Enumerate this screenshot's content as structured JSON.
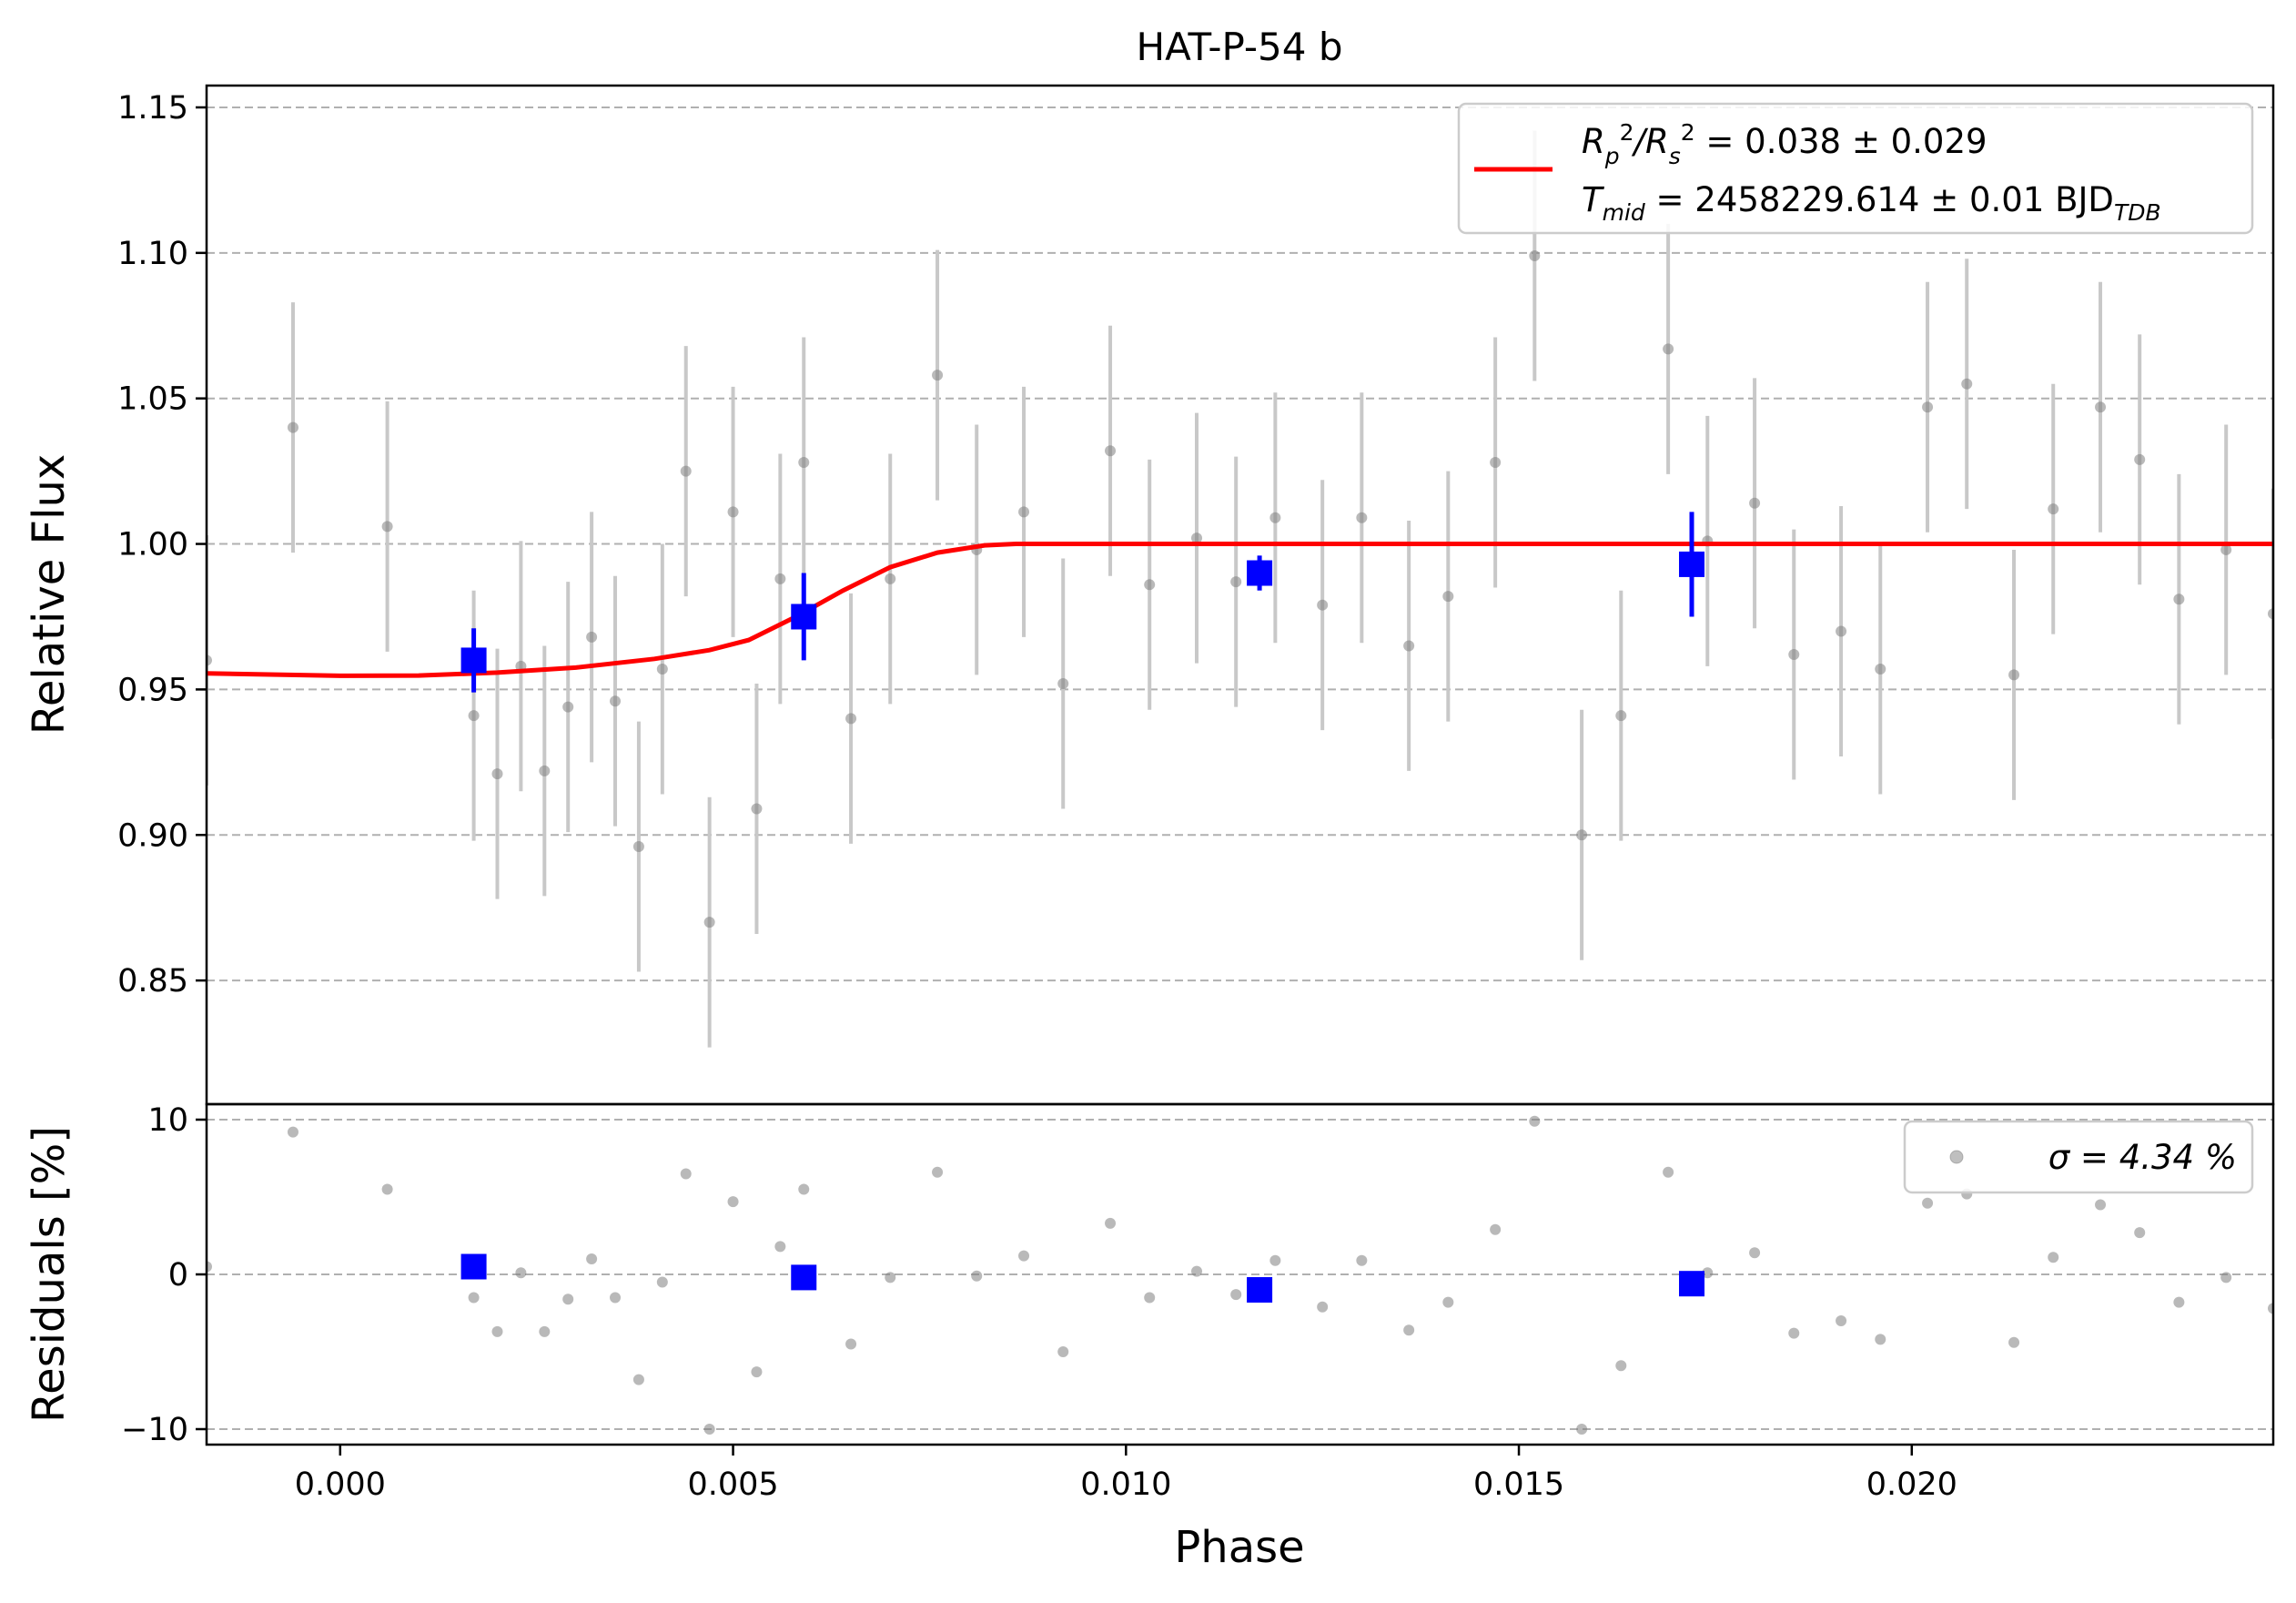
{
  "chart_data": {
    "type": "scatter",
    "title": "HAT-P-54 b",
    "xlabel": "Phase",
    "xlim": [
      -0.0017,
      0.0246
    ],
    "x_ticks": [
      "0.000",
      "0.005",
      "0.010",
      "0.015",
      "0.020"
    ],
    "x_tick_values": [
      0.0,
      0.005,
      0.01,
      0.015,
      0.02
    ],
    "colors": {
      "data": "#808080",
      "errorbar": "#c8c8c8",
      "binned": "#0000ff",
      "model": "#ff0000",
      "grid": "#b0b0b0"
    },
    "top_panel": {
      "ylabel": "Relative Flux",
      "ylim": [
        0.8075,
        1.1575
      ],
      "y_ticks": [
        "0.85",
        "0.90",
        "0.95",
        "1.00",
        "1.05",
        "1.10",
        "1.15"
      ],
      "y_tick_values": [
        0.85,
        0.9,
        0.95,
        1.0,
        1.05,
        1.1,
        1.15
      ],
      "grid": "horizontal dashed",
      "legend_placement": "top-right",
      "legend_line1_parts": [
        "R",
        "p",
        "2",
        "/R",
        "s",
        "2",
        " = 0.038 ± 0.029"
      ],
      "legend_line2_parts": [
        "T",
        "mid",
        " = 2458229.614 ± 0.01 BJD",
        "TDB"
      ],
      "series": [
        {
          "name": "Data",
          "type": "scatter",
          "x": [
            -0.0017,
            -0.0006,
            0.0006,
            0.0017,
            0.002,
            0.0023,
            0.0026,
            0.0029,
            0.0032,
            0.0035,
            0.0038,
            0.0041,
            0.0044,
            0.0047,
            0.005,
            0.0053,
            0.0056,
            0.0059,
            0.0065,
            0.007,
            0.0076,
            0.0081,
            0.0087,
            0.0092,
            0.0098,
            0.0103,
            0.0109,
            0.0114,
            0.0119,
            0.0125,
            0.013,
            0.0136,
            0.0141,
            0.0147,
            0.0152,
            0.0158,
            0.0163,
            0.0169,
            0.0174,
            0.018,
            0.0185,
            0.0191,
            0.0196,
            0.0202,
            0.0207,
            0.0213,
            0.0218,
            0.0224,
            0.0229,
            0.0234,
            0.024,
            0.0246
          ],
          "y": [
            0.96,
            1.04,
            1.006,
            0.941,
            0.921,
            0.958,
            0.922,
            0.944,
            0.968,
            0.946,
            0.896,
            0.957,
            1.025,
            0.87,
            1.011,
            0.909,
            0.988,
            1.028,
            0.94,
            0.988,
            1.058,
            0.998,
            1.011,
            0.952,
            1.032,
            0.986,
            1.002,
            0.987,
            1.009,
            0.979,
            1.009,
            0.965,
            0.982,
            1.028,
            1.099,
            0.9,
            0.941,
            1.067,
            1.001,
            1.014,
            0.962,
            0.97,
            0.957,
            1.047,
            1.055,
            0.955,
            1.012,
            1.047,
            1.029,
            0.981,
            0.998,
            0.976
          ],
          "yerr": [
            0.043,
            0.043,
            0.043,
            0.043,
            0.043,
            0.043,
            0.043,
            0.043,
            0.043,
            0.043,
            0.043,
            0.043,
            0.043,
            0.043,
            0.043,
            0.043,
            0.043,
            0.043,
            0.043,
            0.043,
            0.043,
            0.043,
            0.043,
            0.043,
            0.043,
            0.043,
            0.043,
            0.043,
            0.043,
            0.043,
            0.043,
            0.043,
            0.043,
            0.043,
            0.043,
            0.043,
            0.043,
            0.043,
            0.043,
            0.043,
            0.043,
            0.043,
            0.043,
            0.043,
            0.043,
            0.043,
            0.043,
            0.043,
            0.043,
            0.043,
            0.043,
            0.043
          ]
        },
        {
          "name": "Binned",
          "type": "scatter",
          "x": [
            0.0017,
            0.0059,
            0.0117,
            0.0172
          ],
          "y": [
            0.96,
            0.975,
            0.99,
            0.993
          ],
          "yerr": [
            0.011,
            0.015,
            0.006,
            0.018
          ]
        },
        {
          "name": "Model",
          "type": "line",
          "x": [
            -0.0017,
            0.0,
            0.001,
            0.002,
            0.003,
            0.004,
            0.0047,
            0.0052,
            0.0058,
            0.0064,
            0.007,
            0.0076,
            0.0082,
            0.0086,
            0.01,
            0.015,
            0.02,
            0.0246
          ],
          "y": [
            0.9555,
            0.9547,
            0.9548,
            0.9558,
            0.9575,
            0.9605,
            0.9635,
            0.967,
            0.975,
            0.984,
            0.992,
            0.997,
            0.9995,
            1.0,
            1.0,
            1.0,
            1.0,
            1.0
          ]
        }
      ]
    },
    "bottom_panel": {
      "ylabel": "Residuals [%]",
      "ylim": [
        -11,
        11
      ],
      "y_ticks": [
        "−10",
        "0",
        "10"
      ],
      "y_tick_values": [
        -10,
        0,
        10
      ],
      "grid": "horizontal dashed",
      "legend_placement": "top-right",
      "legend_text": "σ = 4.34 %",
      "series": [
        {
          "name": "Residuals",
          "type": "scatter",
          "x": [
            -0.0017,
            -0.0006,
            0.0006,
            0.0017,
            0.002,
            0.0023,
            0.0026,
            0.0029,
            0.0032,
            0.0035,
            0.0038,
            0.0041,
            0.0044,
            0.0047,
            0.005,
            0.0053,
            0.0056,
            0.0059,
            0.0065,
            0.007,
            0.0076,
            0.0081,
            0.0087,
            0.0092,
            0.0098,
            0.0103,
            0.0109,
            0.0114,
            0.0119,
            0.0125,
            0.013,
            0.0136,
            0.0141,
            0.0147,
            0.0152,
            0.0158,
            0.0163,
            0.0169,
            0.0174,
            0.018,
            0.0185,
            0.0191,
            0.0196,
            0.0202,
            0.0207,
            0.0213,
            0.0218,
            0.0224,
            0.0229,
            0.0234,
            0.024,
            0.0246
          ],
          "y": [
            0.5,
            9.2,
            5.5,
            -1.5,
            -3.7,
            0.1,
            -3.7,
            -1.6,
            1.0,
            -1.5,
            -6.8,
            -0.5,
            6.5,
            -10.0,
            4.7,
            -6.3,
            1.8,
            5.5,
            -4.5,
            -0.2,
            6.6,
            -0.1,
            1.2,
            -5.0,
            3.3,
            -1.5,
            0.2,
            -1.3,
            0.9,
            -2.1,
            0.9,
            -3.6,
            -1.8,
            2.9,
            9.9,
            -10.0,
            -5.9,
            6.6,
            0.1,
            1.4,
            -3.8,
            -3.0,
            -4.2,
            4.6,
            5.2,
            -4.4,
            1.1,
            4.5,
            2.7,
            -1.8,
            -0.2,
            -2.2
          ]
        },
        {
          "name": "Binned residuals",
          "type": "scatter",
          "x": [
            0.0017,
            0.0059,
            0.0117,
            0.0172
          ],
          "y": [
            0.5,
            -0.2,
            -1.0,
            -0.6
          ]
        }
      ]
    }
  }
}
